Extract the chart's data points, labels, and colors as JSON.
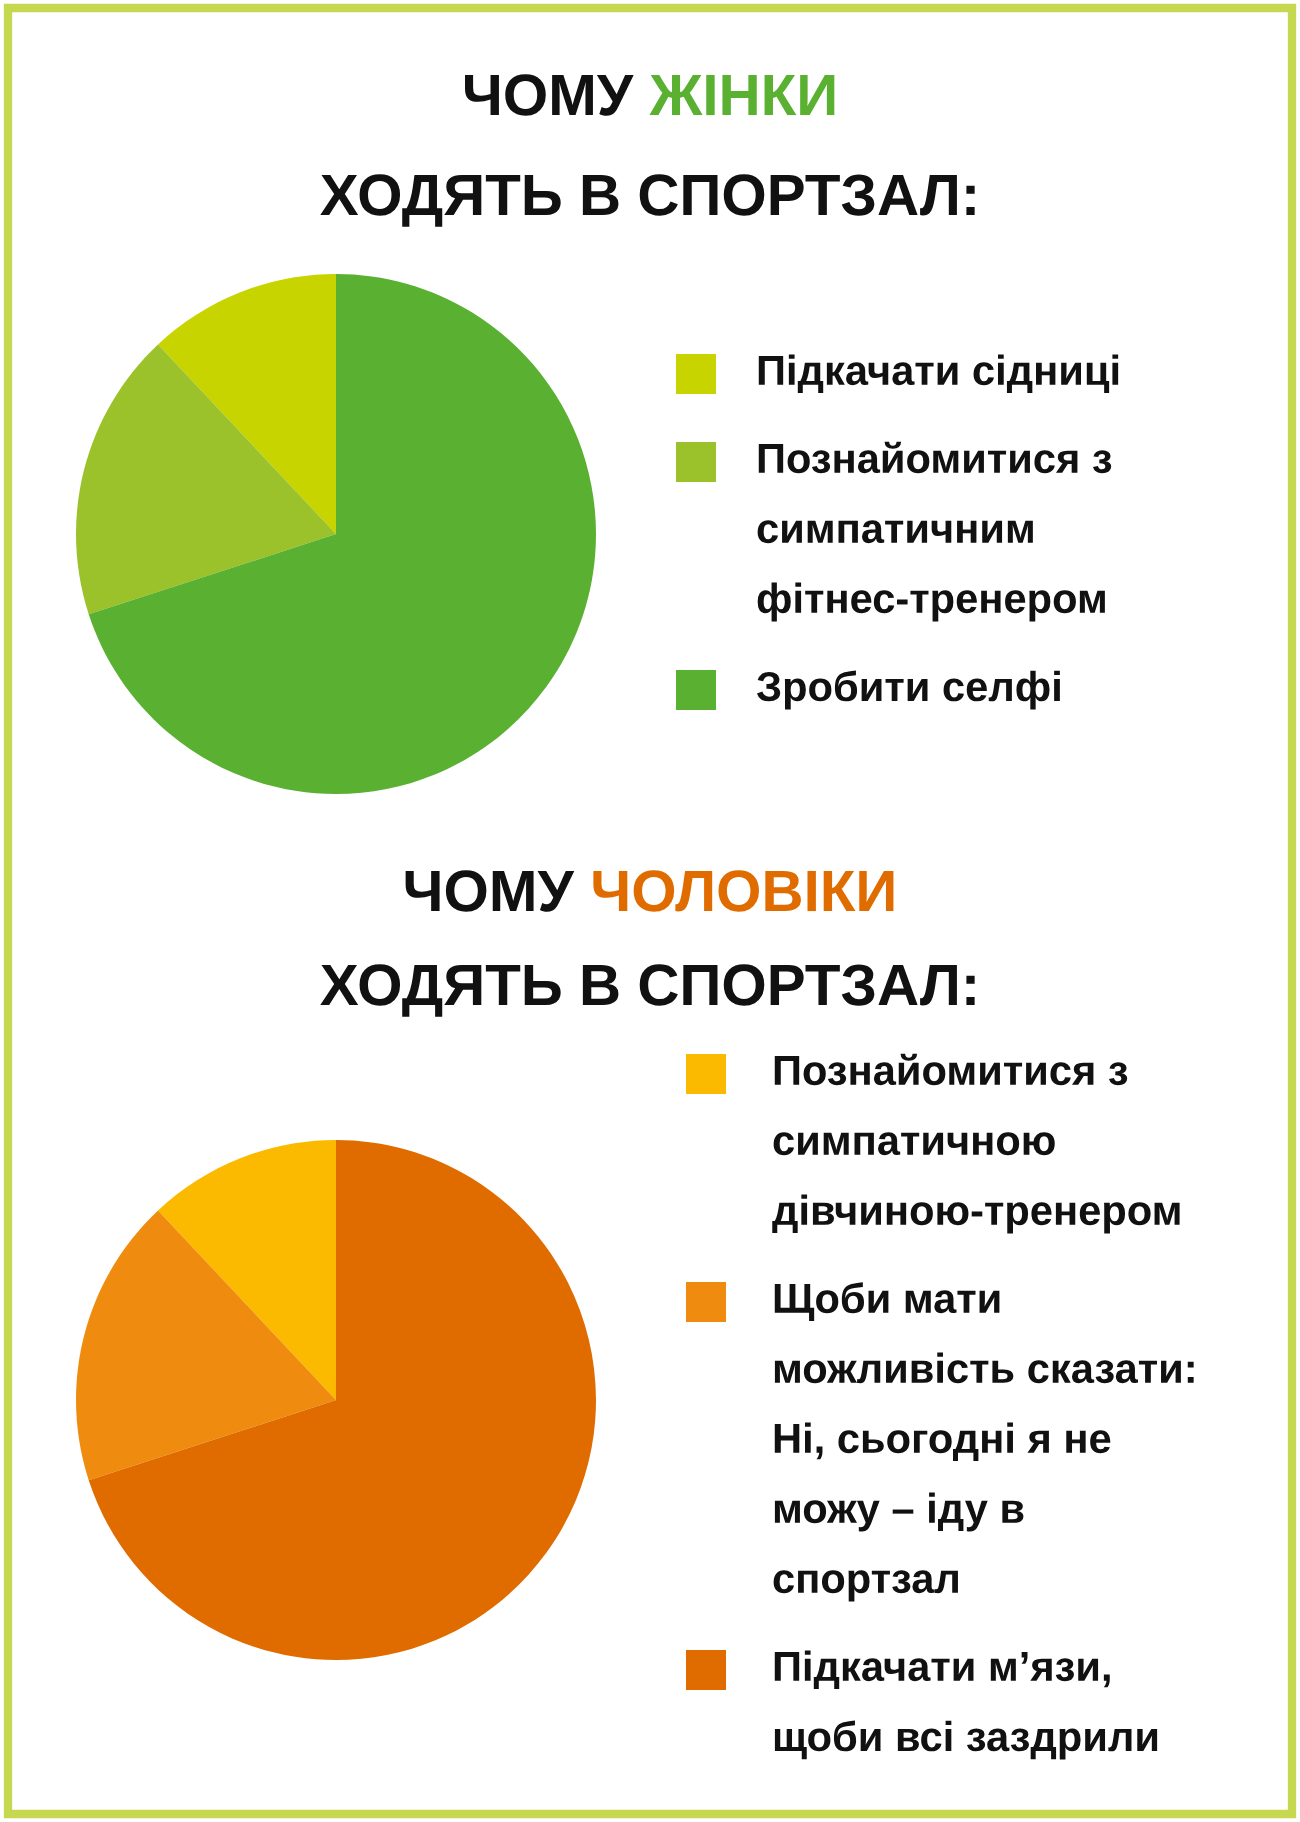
{
  "chart_data": [
    {
      "type": "pie",
      "title": "ЧОМУ ЖІНКИ\nХОДЯТЬ В СПОРТЗАЛ:",
      "categories": [
        "Підкачати сідниці",
        "Познайомитися з\nсимпатичним\nфітнес-тренером",
        "Зробити селфі"
      ],
      "values": [
        12,
        18,
        70
      ],
      "colors": [
        "#c8d400",
        "#9bc12b",
        "#5ab031"
      ],
      "legend": "right"
    },
    {
      "type": "pie",
      "title": "ЧОМУ ЧОЛОВІКИ\nХОДЯТЬ В СПОРТЗАЛ:",
      "categories": [
        "Познайомитися з\nсимпатичною\nдівчиною-тренером",
        "Щоби мати\nможливість сказати:\nНі, сьогодні я не\nможу – іду в\nспортзал",
        "Підкачати м’язи,\nщоби всі заздрили"
      ],
      "values": [
        12,
        18,
        70
      ],
      "colors": [
        "#fbb900",
        "#ef8c10",
        "#e06c00"
      ],
      "legend": "right"
    }
  ]
}
